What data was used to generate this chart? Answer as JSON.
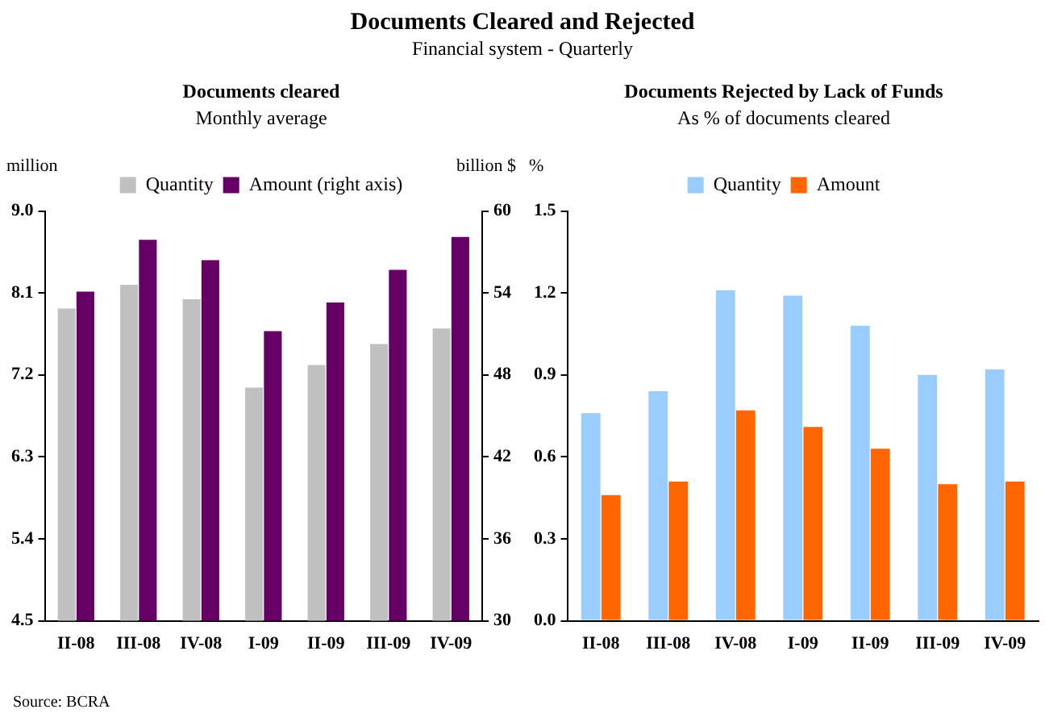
{
  "chart_data": [
    {
      "type": "bar",
      "title": "Documents cleared",
      "subtitle": "Monthly average",
      "ylabel": "million",
      "y2label": "billion $",
      "annotations": [
        "Documents Cleared and Rejected",
        "Financial system - Quarterly",
        "Source: BCRA"
      ],
      "categories": [
        "II-08",
        "III-08",
        "IV-08",
        "I-09",
        "II-09",
        "III-09",
        "IV-09"
      ],
      "series": [
        {
          "name": "Quantity",
          "color": "#c0c0c0",
          "values": [
            7.93,
            8.19,
            8.03,
            7.06,
            7.31,
            7.54,
            7.71
          ]
        },
        {
          "name": "Amount (right axis)",
          "color": "#660066",
          "axis": "y2",
          "values": [
            54.1,
            57.9,
            56.4,
            51.2,
            53.3,
            55.7,
            58.1
          ]
        }
      ],
      "ylim": [
        4.5,
        9.0
      ],
      "yticks": [
        {
          "value": 4.5,
          "label": "4.5"
        },
        {
          "value": 5.4,
          "label": "5.4"
        },
        {
          "value": 6.3,
          "label": "6.3"
        },
        {
          "value": 7.2,
          "label": "7.2"
        },
        {
          "value": 8.1,
          "label": "8.1"
        },
        {
          "value": 9.0,
          "label": "9.0"
        }
      ],
      "y2lim": [
        30,
        60
      ],
      "y2ticks": [
        30,
        36,
        42,
        48,
        54,
        60
      ],
      "grid": false,
      "legend": "top"
    },
    {
      "type": "bar",
      "title": "Documents Rejected by Lack of Funds",
      "subtitle": "As % of documents cleared",
      "ylabel": "%",
      "categories": [
        "II-08",
        "III-08",
        "IV-08",
        "I-09",
        "II-09",
        "III-09",
        "IV-09"
      ],
      "series": [
        {
          "name": "Quantity",
          "color": "#99ccff",
          "values": [
            0.76,
            0.84,
            1.21,
            1.19,
            1.08,
            0.9,
            0.92
          ]
        },
        {
          "name": "Amount",
          "color": "#ff6600",
          "values": [
            0.46,
            0.51,
            0.77,
            0.71,
            0.63,
            0.5,
            0.51
          ]
        }
      ],
      "ylim": [
        0,
        1.5
      ],
      "yticks": [
        {
          "value": 0,
          "label": "0.0"
        },
        {
          "value": 0.3,
          "label": "0.3"
        },
        {
          "value": 0.6,
          "label": "0.6"
        },
        {
          "value": 0.9,
          "label": "0.9"
        },
        {
          "value": 1.2,
          "label": "1.2"
        },
        {
          "value": 1.5,
          "label": "1.5"
        }
      ],
      "grid": false,
      "legend": "top"
    }
  ]
}
